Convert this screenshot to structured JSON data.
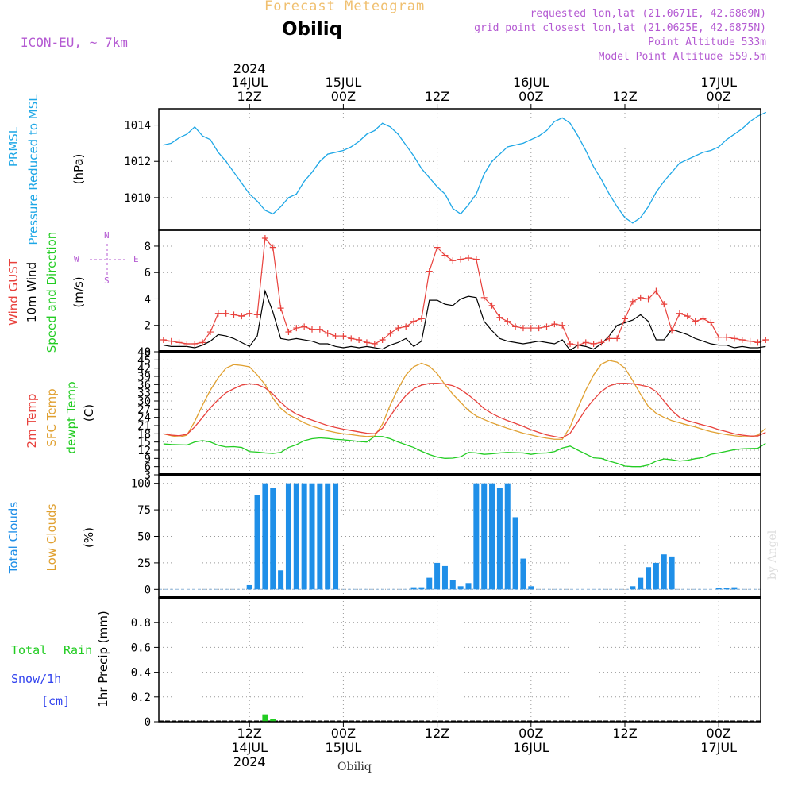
{
  "header": {
    "subtitle": "Forecast Meteogram",
    "location": "Obiliq",
    "model": "ICON-EU, ~ 7km",
    "requested": "requested lon,lat (21.0671E, 42.6869N)",
    "gridpoint": "grid point closest lon,lat (21.0625E, 42.6875N)",
    "point_alt": "Point Altitude 533m",
    "model_alt": "Model Point Altitude 559.5m",
    "footer_location": "Obiliq",
    "credit": "by Angel"
  },
  "time_axis": {
    "top_labels": [
      {
        "line1": "2024",
        "line2": "14JUL",
        "line3": "12Z"
      },
      {
        "line1": "",
        "line2": "15JUL",
        "line3": "00Z"
      },
      {
        "line1": "",
        "line2": "",
        "line3": "12Z"
      },
      {
        "line1": "",
        "line2": "16JUL",
        "line3": "00Z"
      },
      {
        "line1": "",
        "line2": "",
        "line3": "12Z"
      },
      {
        "line1": "",
        "line2": "17JUL",
        "line3": "00Z"
      }
    ],
    "bottom_labels": [
      {
        "line1": "12Z",
        "line2": "14JUL",
        "line3": "2024"
      },
      {
        "line1": "00Z",
        "line2": "15JUL",
        "line3": ""
      },
      {
        "line1": "12Z",
        "line2": "",
        "line3": ""
      },
      {
        "line1": "00Z",
        "line2": "16JUL",
        "line3": ""
      },
      {
        "line1": "12Z",
        "line2": "",
        "line3": ""
      },
      {
        "line1": "00Z",
        "line2": "17JUL",
        "line3": ""
      }
    ],
    "tick_hours": [
      12,
      24,
      36,
      48,
      60,
      72
    ]
  },
  "colors": {
    "pressure": "#1ea7e6",
    "gust": "#e8413c",
    "wind": "#000000",
    "temp2m": "#e8413c",
    "sfc": "#e0a030",
    "dewpt": "#22cc22",
    "total_clouds": "#1f8fe8",
    "low_clouds": "#e0a030",
    "rain": "#22cc22",
    "snow": "#3344ee",
    "meta": "#b45ad2",
    "title": "#f0c070"
  },
  "chart_data": [
    {
      "type": "line",
      "name": "pressure",
      "title_lines": [
        "PRMSL",
        "Pressure Reduced to MSL",
        "(hPa)"
      ],
      "ylim": [
        1008.2,
        1014.9
      ],
      "yticks": [
        1010,
        1012,
        1014
      ],
      "x_hours": [
        1,
        2,
        3,
        4,
        5,
        6,
        7,
        8,
        9,
        10,
        11,
        12,
        13,
        14,
        15,
        16,
        17,
        18,
        19,
        20,
        21,
        22,
        23,
        24,
        25,
        26,
        27,
        28,
        29,
        30,
        31,
        32,
        33,
        34,
        35,
        36,
        37,
        38,
        39,
        40,
        41,
        42,
        43,
        44,
        45,
        46,
        47,
        48,
        49,
        50,
        51,
        52,
        53,
        54,
        55,
        56,
        57,
        58,
        59,
        60,
        61,
        62,
        63,
        64,
        65,
        66,
        67,
        68,
        69,
        70,
        71,
        72,
        73,
        74,
        75,
        76,
        77,
        78
      ],
      "values": [
        1012.9,
        1013.0,
        1013.3,
        1013.5,
        1013.9,
        1013.4,
        1013.2,
        1012.5,
        1012.0,
        1011.4,
        1010.8,
        1010.2,
        1009.8,
        1009.3,
        1009.1,
        1009.5,
        1010.0,
        1010.2,
        1010.9,
        1011.4,
        1012.0,
        1012.4,
        1012.5,
        1012.6,
        1012.8,
        1013.1,
        1013.5,
        1013.7,
        1014.1,
        1013.9,
        1013.5,
        1012.9,
        1012.3,
        1011.6,
        1011.1,
        1010.6,
        1010.2,
        1009.4,
        1009.1,
        1009.6,
        1010.2,
        1011.3,
        1012.0,
        1012.4,
        1012.8,
        1012.9,
        1013.0,
        1013.2,
        1013.4,
        1013.7,
        1014.2,
        1014.4,
        1014.1,
        1013.4,
        1012.6,
        1011.7,
        1011.0,
        1010.2,
        1009.5,
        1008.9,
        1008.6,
        1008.9,
        1009.5,
        1010.3,
        1010.9,
        1011.4,
        1011.9,
        1012.1,
        1012.3,
        1012.5,
        1012.6,
        1012.8,
        1013.2,
        1013.5,
        1013.8,
        1014.2,
        1014.5,
        1014.7
      ]
    },
    {
      "type": "line",
      "name": "wind",
      "title_lines": [
        "Wind GUST",
        "10m Wind",
        "Speed and Direction",
        "(m/s)"
      ],
      "compass": {
        "n": "N",
        "s": "S",
        "w": "W",
        "e": "E"
      },
      "ylim": [
        0,
        9.2
      ],
      "yticks": [
        0,
        2,
        4,
        6,
        8
      ],
      "x_hours": [
        1,
        2,
        3,
        4,
        5,
        6,
        7,
        8,
        9,
        10,
        11,
        12,
        13,
        14,
        15,
        16,
        17,
        18,
        19,
        20,
        21,
        22,
        23,
        24,
        25,
        26,
        27,
        28,
        29,
        30,
        31,
        32,
        33,
        34,
        35,
        36,
        37,
        38,
        39,
        40,
        41,
        42,
        43,
        44,
        45,
        46,
        47,
        48,
        49,
        50,
        51,
        52,
        53,
        54,
        55,
        56,
        57,
        58,
        59,
        60,
        61,
        62,
        63,
        64,
        65,
        66,
        67,
        68,
        69,
        70,
        71,
        72,
        73,
        74,
        75,
        76,
        77,
        78
      ],
      "series": [
        {
          "name": "gust",
          "values": [
            0.9,
            0.8,
            0.7,
            0.6,
            0.6,
            0.7,
            1.5,
            2.9,
            2.9,
            2.8,
            2.7,
            2.9,
            2.8,
            8.6,
            7.9,
            3.3,
            1.5,
            1.8,
            1.9,
            1.7,
            1.7,
            1.4,
            1.2,
            1.2,
            1.0,
            0.9,
            0.7,
            0.6,
            0.9,
            1.4,
            1.8,
            1.9,
            2.3,
            2.5,
            6.1,
            7.9,
            7.3,
            6.9,
            7.0,
            7.1,
            7.0,
            4.1,
            3.5,
            2.6,
            2.3,
            1.9,
            1.8,
            1.8,
            1.8,
            1.9,
            2.1,
            2.0,
            0.6,
            0.5,
            0.7,
            0.6,
            0.7,
            1.0,
            1.0,
            2.5,
            3.8,
            4.1,
            4.0,
            4.6,
            3.6,
            1.6,
            2.9,
            2.7,
            2.3,
            2.5,
            2.2,
            1.1,
            1.1,
            1.0,
            0.9,
            0.8,
            0.7,
            0.9
          ]
        },
        {
          "name": "wind10m",
          "values": [
            0.5,
            0.4,
            0.4,
            0.4,
            0.3,
            0.5,
            0.8,
            1.3,
            1.2,
            1.0,
            0.7,
            0.4,
            1.2,
            4.6,
            3.0,
            1.0,
            0.9,
            1.0,
            0.9,
            0.8,
            0.6,
            0.6,
            0.4,
            0.3,
            0.4,
            0.3,
            0.4,
            0.3,
            0.2,
            0.5,
            0.7,
            1.0,
            0.4,
            0.8,
            3.9,
            3.9,
            3.6,
            3.5,
            4.0,
            4.2,
            4.1,
            2.3,
            1.6,
            1.0,
            0.8,
            0.7,
            0.6,
            0.7,
            0.8,
            0.7,
            0.6,
            0.9,
            0.1,
            0.5,
            0.4,
            0.2,
            0.6,
            1.2,
            2.0,
            2.2,
            2.4,
            2.8,
            2.3,
            0.9,
            0.9,
            1.7,
            1.5,
            1.3,
            1.0,
            0.8,
            0.6,
            0.5,
            0.5,
            0.3,
            0.4,
            0.3,
            0.3,
            0.4
          ]
        }
      ]
    },
    {
      "type": "line",
      "name": "temperature",
      "title_lines": [
        "2m Temp",
        "SFC Temp",
        "dewpt Temp",
        "(C)"
      ],
      "ylim": [
        3,
        48
      ],
      "yticks": [
        3,
        6,
        9,
        12,
        15,
        18,
        21,
        24,
        27,
        30,
        33,
        36,
        39,
        42,
        45,
        48
      ],
      "x_hours": [
        1,
        2,
        3,
        4,
        5,
        6,
        7,
        8,
        9,
        10,
        11,
        12,
        13,
        14,
        15,
        16,
        17,
        18,
        19,
        20,
        21,
        22,
        23,
        24,
        25,
        26,
        27,
        28,
        29,
        30,
        31,
        32,
        33,
        34,
        35,
        36,
        37,
        38,
        39,
        40,
        41,
        42,
        43,
        44,
        45,
        46,
        47,
        48,
        49,
        50,
        51,
        52,
        53,
        54,
        55,
        56,
        57,
        58,
        59,
        60,
        61,
        62,
        63,
        64,
        65,
        66,
        67,
        68,
        69,
        70,
        71,
        72,
        73,
        74,
        75,
        76,
        77,
        78
      ],
      "series": [
        {
          "name": "temp2m",
          "values": [
            18.0,
            17.5,
            17.3,
            17.8,
            20.5,
            24.0,
            27.5,
            30.5,
            33.0,
            34.5,
            35.8,
            36.3,
            36.0,
            34.8,
            32.5,
            29.5,
            27.0,
            25.2,
            24.0,
            23.0,
            22.0,
            21.0,
            20.3,
            19.7,
            19.2,
            18.7,
            18.2,
            18.0,
            20.0,
            24.5,
            28.5,
            32.0,
            34.5,
            35.8,
            36.4,
            36.5,
            36.2,
            35.6,
            34.2,
            32.2,
            29.8,
            27.2,
            25.4,
            24.0,
            22.8,
            21.8,
            20.7,
            19.5,
            18.5,
            17.6,
            17.0,
            16.5,
            18.2,
            22.5,
            27.0,
            30.5,
            33.5,
            35.5,
            36.4,
            36.5,
            36.3,
            35.8,
            35.2,
            33.5,
            30.0,
            26.5,
            24.0,
            22.8,
            22.0,
            21.2,
            20.5,
            19.5,
            18.8,
            18.0,
            17.5,
            17.2,
            17.2,
            18.5
          ]
        },
        {
          "name": "sfc",
          "values": [
            18.0,
            17.3,
            16.8,
            17.5,
            22.5,
            28.5,
            34.0,
            38.5,
            42.0,
            43.3,
            43.0,
            42.5,
            39.5,
            36.0,
            31.0,
            27.3,
            25.0,
            23.5,
            22.0,
            20.8,
            19.9,
            19.1,
            18.5,
            18.0,
            17.7,
            17.3,
            17.0,
            17.2,
            21.5,
            28.5,
            34.5,
            39.5,
            42.5,
            43.8,
            42.7,
            40.0,
            36.0,
            32.5,
            29.5,
            26.5,
            24.5,
            23.2,
            22.0,
            21.0,
            20.0,
            19.1,
            18.2,
            17.6,
            16.9,
            16.4,
            16.0,
            16.0,
            20.5,
            27.5,
            34.0,
            39.5,
            43.5,
            44.8,
            44.2,
            42.0,
            37.5,
            32.5,
            28.0,
            25.5,
            24.0,
            22.8,
            22.0,
            21.2,
            20.5,
            19.6,
            18.8,
            18.2,
            17.7,
            17.3,
            17.0,
            16.8,
            17.5,
            20.0
          ]
        },
        {
          "name": "dewpt",
          "values": [
            14.3,
            14.1,
            14.0,
            13.9,
            15.0,
            15.5,
            15.0,
            13.8,
            13.2,
            13.3,
            13.0,
            11.5,
            11.3,
            11.0,
            10.8,
            11.2,
            13.0,
            14.0,
            15.5,
            16.2,
            16.5,
            16.3,
            16.0,
            15.8,
            15.5,
            15.2,
            15.0,
            17.0,
            17.0,
            16.2,
            15.0,
            14.0,
            13.0,
            11.6,
            10.4,
            9.5,
            9.0,
            9.1,
            9.6,
            11.2,
            11.0,
            10.5,
            10.7,
            11.0,
            11.2,
            11.1,
            11.0,
            10.5,
            10.9,
            11.0,
            11.5,
            12.8,
            13.5,
            12.0,
            10.6,
            9.2,
            9.0,
            8.0,
            7.2,
            6.2,
            6.0,
            6.0,
            6.6,
            8.0,
            8.8,
            8.5,
            8.0,
            8.3,
            8.9,
            9.3,
            10.5,
            11.0,
            11.6,
            12.2,
            12.5,
            12.6,
            12.7,
            14.5
          ]
        }
      ]
    },
    {
      "type": "bar",
      "name": "clouds",
      "title_lines": [
        "Total Clouds",
        "Low Clouds",
        "(%)"
      ],
      "ylim": [
        -8,
        108
      ],
      "yticks": [
        0,
        25,
        50,
        75,
        100
      ],
      "x_hours": [
        1,
        2,
        3,
        4,
        5,
        6,
        7,
        8,
        9,
        10,
        11,
        12,
        13,
        14,
        15,
        16,
        17,
        18,
        19,
        20,
        21,
        22,
        23,
        24,
        25,
        26,
        27,
        28,
        29,
        30,
        31,
        32,
        33,
        34,
        35,
        36,
        37,
        38,
        39,
        40,
        41,
        42,
        43,
        44,
        45,
        46,
        47,
        48,
        49,
        50,
        51,
        52,
        53,
        54,
        55,
        56,
        57,
        58,
        59,
        60,
        61,
        62,
        63,
        64,
        65,
        66,
        67,
        68,
        69,
        70,
        71,
        72,
        73,
        74,
        75,
        76,
        77,
        78
      ],
      "series": [
        {
          "name": "total",
          "values": [
            0,
            0,
            0,
            0,
            0,
            0,
            0,
            0,
            0,
            0,
            0,
            4,
            89,
            100,
            96,
            18,
            100,
            100,
            100,
            100,
            100,
            100,
            100,
            0,
            0,
            0,
            0,
            0,
            0,
            0,
            0,
            0,
            2,
            2,
            11,
            25,
            22,
            9,
            3,
            6,
            100,
            100,
            100,
            96,
            100,
            68,
            29,
            3,
            0,
            0,
            0,
            0,
            0,
            0,
            0,
            0,
            0,
            0,
            0,
            0,
            3,
            11,
            21,
            25,
            33,
            31,
            0,
            0,
            0,
            0,
            0,
            1,
            1,
            2,
            0,
            0,
            0,
            0
          ]
        },
        {
          "name": "low",
          "values": [
            0,
            0,
            0,
            0,
            0,
            0,
            0,
            0,
            0,
            0,
            0,
            0,
            0,
            0,
            0,
            0,
            0,
            0,
            0,
            0,
            0,
            0,
            0,
            0,
            0,
            0,
            0,
            0,
            0,
            0,
            0,
            0,
            0,
            0,
            0,
            0,
            0,
            0,
            0,
            0,
            0,
            0,
            0,
            0,
            0,
            0,
            0,
            0,
            0,
            0,
            0,
            0,
            0,
            0,
            0,
            0,
            0,
            0,
            0,
            0,
            0,
            0,
            0,
            0,
            0,
            0,
            0,
            0,
            0,
            0,
            0,
            0,
            0,
            0,
            0,
            0,
            0,
            0
          ]
        }
      ]
    },
    {
      "type": "bar",
      "name": "precip",
      "title_lines": [
        "1hr Precip (mm)"
      ],
      "legend": {
        "total": "Total",
        "rain": "Rain",
        "snow": "Snow/1h",
        "cm": "[cm]"
      },
      "ylim": [
        0,
        1.0
      ],
      "yticks": [
        0,
        0.2,
        0.4,
        0.6,
        0.8
      ],
      "ytick_labels": [
        "0",
        "0.2",
        "0.4",
        "0.6",
        "0.8"
      ],
      "x_hours": [
        14,
        15
      ],
      "values": [
        0.06,
        0.02
      ]
    }
  ]
}
